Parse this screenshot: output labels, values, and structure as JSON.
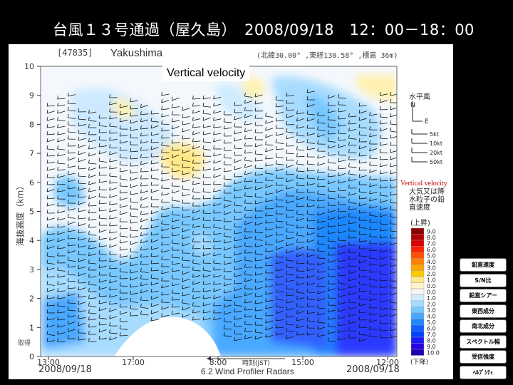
{
  "slide": {
    "title": "台風１３号通過（屋久島）　2008/09/18　12：00－18：00"
  },
  "panel": {
    "station_id": "[47835]",
    "station_name": "Yakushima",
    "station_coords": "(北緯30.00° ,東経130.58° ,標高 36m)",
    "chart_title": "Vertical velocity",
    "footer_label": "6.2 Wind Profiler Radars",
    "sampling_note": "取得"
  },
  "legend": {
    "wind_title": "水平風",
    "north_label": "N",
    "east_label": "E",
    "barbs": [
      "5kt",
      "10kt",
      "20kt",
      "50kt"
    ],
    "vv_label": "Vertical velocity",
    "scale_title": "大気又は降水粒子の鉛直速度",
    "up_label": "(上昇)",
    "down_label": "(下降)",
    "colors": [
      "#8b0000",
      "#b00000",
      "#d80000",
      "#ff2000",
      "#ff5000",
      "#ff8000",
      "#ffa500",
      "#ffc800",
      "#ffe88a",
      "#fff5c8",
      "#f5f5f5",
      "#d0ecff",
      "#a8dcff",
      "#78c8ff",
      "#48a8ff",
      "#1e88ff",
      "#1060ff",
      "#0040ff",
      "#1a1aff",
      "#2a00e0",
      "#1a00b0"
    ],
    "values": [
      "9.0",
      "8.0",
      "7.0",
      "6.0",
      "5.0",
      "4.0",
      "3.0",
      "2.0",
      "1.0",
      "0.0",
      "0.0",
      "1.0",
      "2.0",
      "3.0",
      "4.0",
      "5.0",
      "6.0",
      "7.0",
      "8.0",
      "9.0",
      "10.0"
    ]
  },
  "buttons": [
    "鉛直速度",
    "S/N比",
    "鉛直シアー",
    "東西成分",
    "南北成分",
    "スペクトル幅",
    "受信強度",
    "ﾍﾙﾌﾟｼﾃｨ"
  ],
  "chart_data": {
    "type": "heatmap",
    "title": "Vertical velocity",
    "ylabel": "海抜高度（km）",
    "ylim": [
      0,
      10
    ],
    "y_ticks": [
      "0",
      "1",
      "2",
      "3",
      "4",
      "5",
      "6",
      "7",
      "8",
      "9",
      "10"
    ],
    "x_ticks": [
      "13:00",
      "17:00",
      "8:00",
      "15:00",
      "12:00"
    ],
    "x_start_date": "2008/09/18",
    "x_end_date": "2008/09/18",
    "x_axis_label": "時刻(JST)"
  }
}
